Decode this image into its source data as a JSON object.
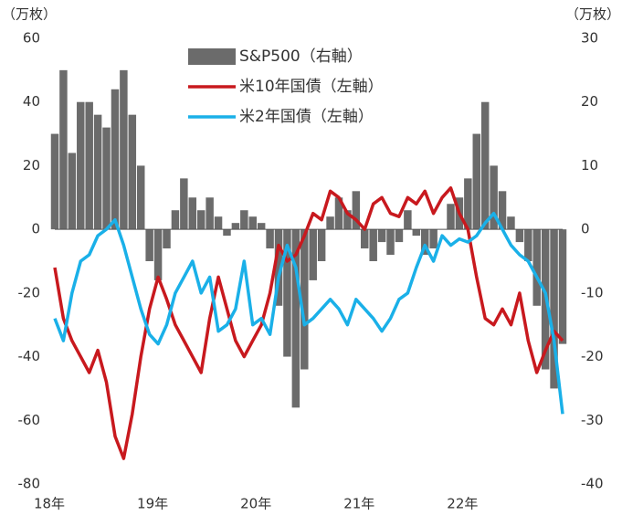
{
  "chart_data": {
    "type": "bar_line",
    "y_label": "（万枚）",
    "y2_label": "（万枚）",
    "categories": [
      "18年",
      null,
      null,
      null,
      null,
      null,
      null,
      null,
      null,
      null,
      null,
      null,
      "19年",
      null,
      null,
      null,
      null,
      null,
      null,
      null,
      null,
      null,
      null,
      null,
      "20年",
      null,
      null,
      null,
      null,
      null,
      null,
      null,
      null,
      null,
      null,
      null,
      "21年",
      null,
      null,
      null,
      null,
      null,
      null,
      null,
      null,
      null,
      null,
      null,
      "22年",
      null,
      null,
      null,
      null,
      null,
      null,
      null,
      null,
      null,
      null,
      null
    ],
    "ylim": [
      -80,
      60
    ],
    "yticks": [
      -80,
      -60,
      -40,
      -20,
      0,
      20,
      40,
      60
    ],
    "y2lim": [
      -40,
      30
    ],
    "y2ticks": [
      -40,
      -30,
      -20,
      -10,
      0,
      10,
      20,
      30
    ],
    "legend": "top",
    "series": [
      {
        "name": "S&P500（右軸）",
        "color": "#6b6b6b",
        "type": "bar",
        "axis": "y2",
        "values": [
          15,
          25,
          12,
          20,
          20,
          18,
          16,
          22,
          25,
          18,
          10,
          -5,
          -8,
          -3,
          3,
          8,
          5,
          3,
          5,
          2,
          -1,
          1,
          3,
          2,
          1,
          -3,
          -12,
          -20,
          -28,
          -22,
          -8,
          -5,
          2,
          5,
          3,
          6,
          -3,
          -5,
          -2,
          -4,
          -2,
          3,
          -1,
          -4,
          -3,
          0,
          4,
          5,
          8,
          15,
          20,
          10,
          6,
          2,
          -2,
          -5,
          -12,
          -22,
          -25,
          -18
        ]
      },
      {
        "name": "米10年国債（左軸）",
        "color": "#c8191e",
        "type": "line",
        "values": [
          -12,
          -28,
          -35,
          -40,
          -45,
          -38,
          -48,
          -65,
          -72,
          -58,
          -40,
          -25,
          -15,
          -22,
          -30,
          -35,
          -40,
          -45,
          -28,
          -15,
          -25,
          -35,
          -40,
          -35,
          -30,
          -20,
          -5,
          -10,
          -8,
          -2,
          5,
          3,
          12,
          10,
          5,
          3,
          0,
          8,
          10,
          5,
          4,
          10,
          8,
          12,
          5,
          10,
          13,
          5,
          0,
          -15,
          -28,
          -30,
          -25,
          -30,
          -20,
          -35,
          -45,
          -38,
          -32,
          -35
        ]
      },
      {
        "name": "米2年国債（左軸）",
        "color": "#1ab0e8",
        "type": "line",
        "values": [
          -28,
          -35,
          -20,
          -10,
          -8,
          -2,
          0,
          3,
          -5,
          -15,
          -25,
          -33,
          -36,
          -30,
          -20,
          -15,
          -10,
          -20,
          -15,
          -32,
          -30,
          -25,
          -10,
          -30,
          -28,
          -33,
          -15,
          -5,
          -12,
          -30,
          -28,
          -25,
          -22,
          -25,
          -30,
          -22,
          -25,
          -28,
          -32,
          -28,
          -22,
          -20,
          -12,
          -5,
          -10,
          -2,
          -5,
          -3,
          -4,
          -2,
          2,
          5,
          0,
          -5,
          -8,
          -10,
          -15,
          -20,
          -35,
          -58
        ]
      }
    ]
  }
}
